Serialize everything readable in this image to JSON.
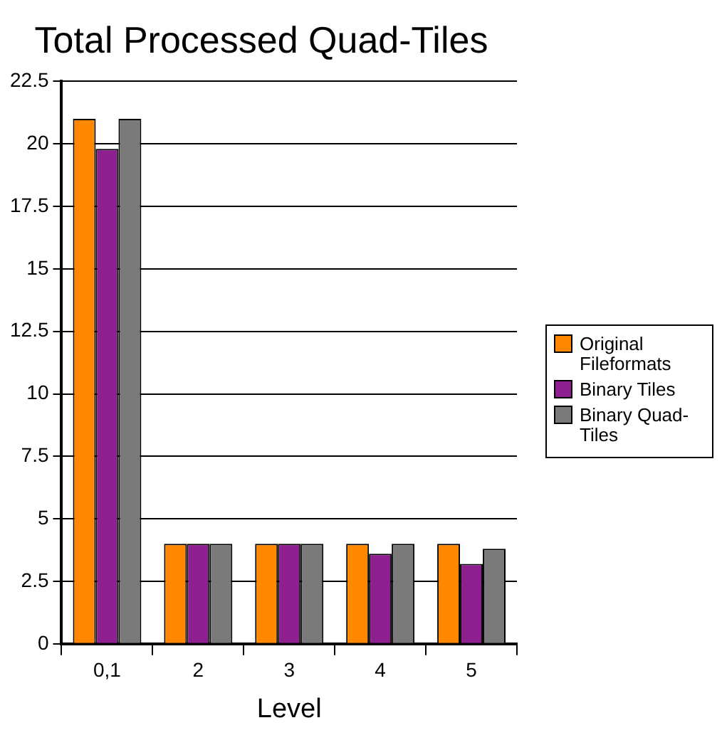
{
  "chart_data": {
    "type": "bar",
    "title": "Total Processed Quad-Tiles",
    "xlabel": "Level",
    "categories": [
      "0,1",
      "2",
      "3",
      "4",
      "5"
    ],
    "series": [
      {
        "name": "Original Fileformats",
        "color": "#ff8800",
        "values": [
          21,
          4,
          4,
          4,
          4
        ]
      },
      {
        "name": "Binary Tiles",
        "color": "#8e1f8e",
        "values": [
          19.8,
          4,
          4,
          3.6,
          3.2
        ]
      },
      {
        "name": "Binary Quad-Tiles",
        "color": "#7a7a7a",
        "values": [
          21,
          4,
          4,
          4,
          3.8
        ]
      }
    ],
    "ylim": [
      0,
      22.5
    ],
    "yticks": [
      0,
      2.5,
      5,
      7.5,
      10,
      12.5,
      15,
      17.5,
      20,
      22.5
    ],
    "grid": "y",
    "legend": "right"
  }
}
